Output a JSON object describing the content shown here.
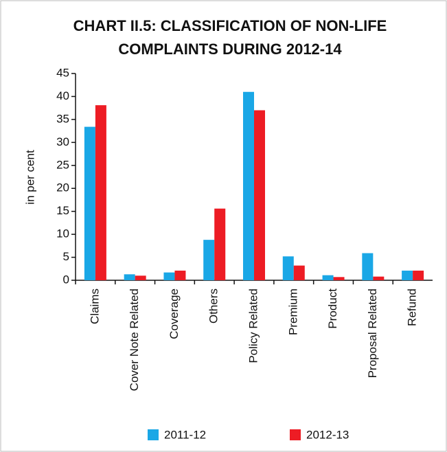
{
  "chart_data": {
    "type": "bar",
    "title": [
      "CHART II.5: CLASSIFICATION OF  NON-LIFE",
      "COMPLAINTS DURING 2012-14"
    ],
    "y_label": "in per cent",
    "categories": [
      "Claims",
      "Cover Note Related",
      "Coverage",
      "Others",
      "Policy Related",
      "Premium",
      "Product",
      "Proposal Related",
      "Refund"
    ],
    "series": [
      {
        "name": "2011-12",
        "color": "#1aa7e6",
        "values": [
          33.4,
          1.3,
          1.7,
          8.8,
          41,
          5.2,
          1.1,
          5.9,
          2.1
        ]
      },
      {
        "name": "2012-13",
        "color": "#ed1c24",
        "values": [
          38.1,
          1.0,
          2.1,
          15.6,
          37,
          3.2,
          0.7,
          0.8,
          2.1
        ]
      }
    ],
    "ylim": [
      0,
      45
    ],
    "yticks": [
      0,
      5,
      10,
      15,
      20,
      25,
      30,
      35,
      40,
      45
    ]
  }
}
